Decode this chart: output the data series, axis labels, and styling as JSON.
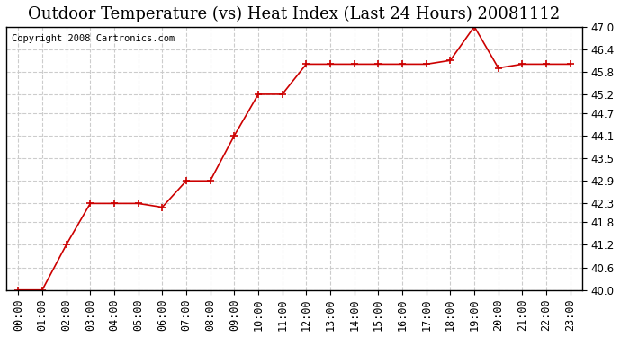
{
  "title": "Outdoor Temperature (vs) Heat Index (Last 24 Hours) 20081112",
  "copyright_text": "Copyright 2008 Cartronics.com",
  "x_labels": [
    "00:00",
    "01:00",
    "02:00",
    "03:00",
    "04:00",
    "05:00",
    "06:00",
    "07:00",
    "08:00",
    "09:00",
    "10:00",
    "11:00",
    "12:00",
    "13:00",
    "14:00",
    "15:00",
    "16:00",
    "17:00",
    "18:00",
    "19:00",
    "20:00",
    "21:00",
    "22:00",
    "23:00"
  ],
  "y_values": [
    40.0,
    40.0,
    41.2,
    42.3,
    42.3,
    42.3,
    42.2,
    42.9,
    42.9,
    44.1,
    45.2,
    45.2,
    46.0,
    46.0,
    46.0,
    46.0,
    46.0,
    46.0,
    46.1,
    47.0,
    45.9,
    46.0,
    46.0,
    46.0
  ],
  "line_color": "#cc0000",
  "marker": "+",
  "marker_color": "#cc0000",
  "marker_size": 6,
  "ylim": [
    40.0,
    47.0
  ],
  "yticks": [
    40.0,
    40.6,
    41.2,
    41.8,
    42.3,
    42.9,
    43.5,
    44.1,
    44.7,
    45.2,
    45.8,
    46.4,
    47.0
  ],
  "grid_color": "#cccccc",
  "grid_style": "--",
  "background_color": "#ffffff",
  "title_fontsize": 13,
  "tick_fontsize": 8.5,
  "copyright_fontsize": 7.5
}
